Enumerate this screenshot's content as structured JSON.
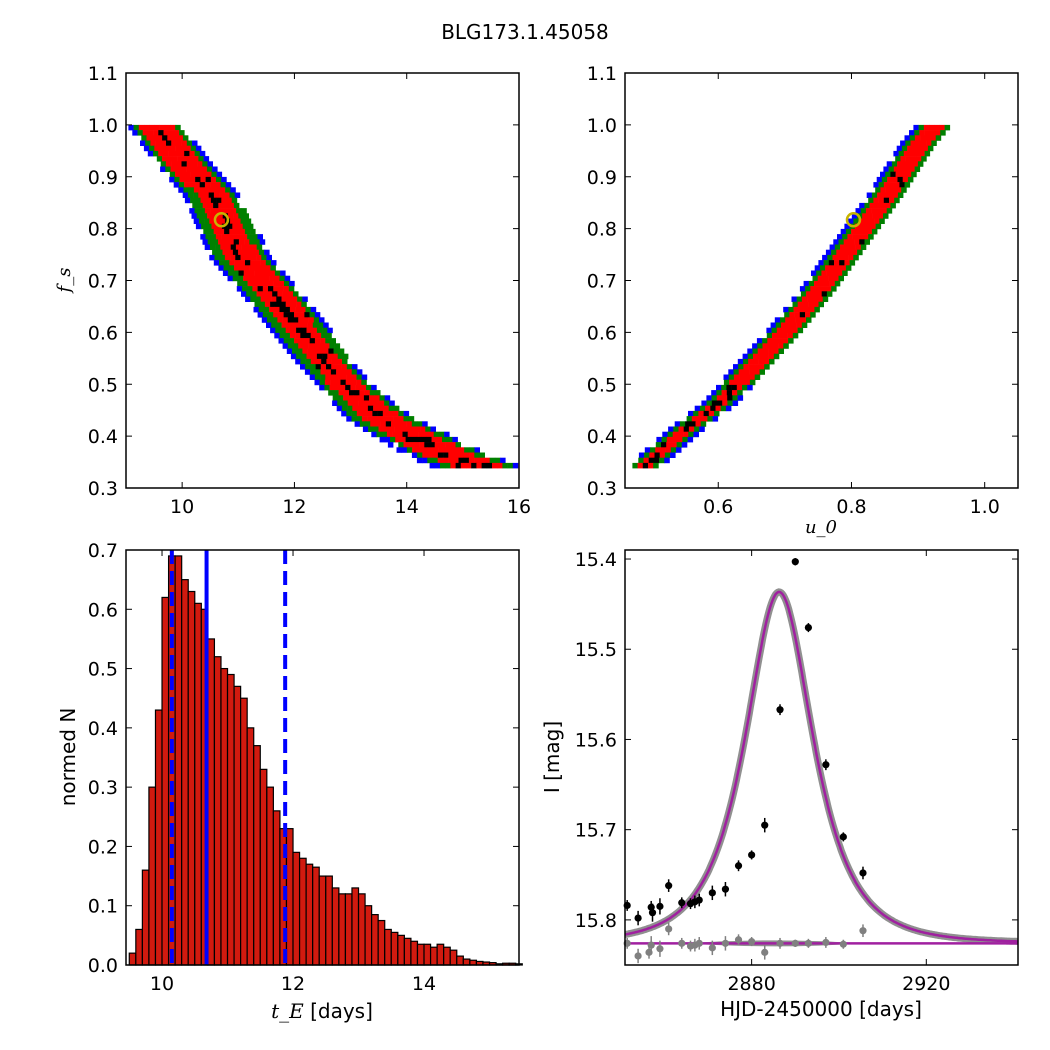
{
  "figure_title": "BLG173.1.45058",
  "colors": {
    "blue": "#0000ff",
    "green": "#008000",
    "red": "#ff0000",
    "black": "#000000",
    "hist_fill": "#d11a0f",
    "model_line": "#a020a0",
    "residual": "#808080",
    "marker_ring": "#c8b400"
  },
  "chart_data": [
    {
      "type": "heatmap",
      "panel": "fs_vs_tE",
      "xlabel": "",
      "ylabel": "f_s",
      "xlim": [
        9,
        16
      ],
      "ylim": [
        0.3,
        1.1
      ],
      "xticks": [
        "10",
        "12",
        "14",
        "16"
      ],
      "yticks": [
        "0.3",
        "0.4",
        "0.5",
        "0.6",
        "0.7",
        "0.8",
        "0.9",
        "1.0",
        "1.1"
      ],
      "levels": [
        "blue",
        "green",
        "red",
        "black"
      ],
      "ridge": [
        [
          9.5,
          1.0
        ],
        [
          10.0,
          0.93
        ],
        [
          10.5,
          0.87
        ],
        [
          11.0,
          0.75
        ],
        [
          11.5,
          0.69
        ],
        [
          12.0,
          0.62
        ],
        [
          12.5,
          0.55
        ],
        [
          13.0,
          0.49
        ],
        [
          13.5,
          0.44
        ],
        [
          14.0,
          0.41
        ],
        [
          14.5,
          0.38
        ],
        [
          15.0,
          0.355
        ],
        [
          15.4,
          0.34
        ]
      ],
      "best_fit": {
        "x": 10.7,
        "y": 0.817
      }
    },
    {
      "type": "heatmap",
      "panel": "fs_vs_u0",
      "xlabel": "u_0",
      "ylabel": "",
      "xlim": [
        0.46,
        1.05
      ],
      "ylim": [
        0.3,
        1.1
      ],
      "xticks": [
        "0.6",
        "0.8",
        "1.0"
      ],
      "yticks": [
        "0.3",
        "0.4",
        "0.5",
        "0.6",
        "0.7",
        "0.8",
        "0.9",
        "1.0",
        "1.1"
      ],
      "levels": [
        "blue",
        "green",
        "red",
        "black"
      ],
      "ridge": [
        [
          0.48,
          0.34
        ],
        [
          0.55,
          0.42
        ],
        [
          0.6,
          0.47
        ],
        [
          0.65,
          0.54
        ],
        [
          0.7,
          0.61
        ],
        [
          0.75,
          0.69
        ],
        [
          0.8,
          0.78
        ],
        [
          0.85,
          0.87
        ],
        [
          0.9,
          0.97
        ],
        [
          0.92,
          1.0
        ]
      ],
      "best_fit": {
        "x": 0.803,
        "y": 0.817
      }
    },
    {
      "type": "bar",
      "panel": "tE_histogram",
      "xlabel": "t_E",
      "xlabel_suffix": " [days]",
      "ylabel": "normed N",
      "xlim": [
        9.45,
        15.45
      ],
      "ylim": [
        0,
        0.7
      ],
      "xticks": [
        "10",
        "12",
        "14"
      ],
      "yticks": [
        "0.0",
        "0.1",
        "0.2",
        "0.3",
        "0.4",
        "0.5",
        "0.6",
        "0.7"
      ],
      "bin_start": 9.5,
      "bin_width": 0.1,
      "values": [
        0.02,
        0.06,
        0.16,
        0.3,
        0.43,
        0.62,
        0.69,
        0.69,
        0.65,
        0.63,
        0.61,
        0.6,
        0.55,
        0.52,
        0.5,
        0.49,
        0.47,
        0.45,
        0.4,
        0.37,
        0.33,
        0.3,
        0.26,
        0.23,
        0.23,
        0.19,
        0.18,
        0.17,
        0.165,
        0.15,
        0.15,
        0.13,
        0.12,
        0.12,
        0.13,
        0.12,
        0.1,
        0.085,
        0.075,
        0.06,
        0.055,
        0.05,
        0.045,
        0.04,
        0.035,
        0.035,
        0.03,
        0.035,
        0.03,
        0.025,
        0.015,
        0.01,
        0.008,
        0.006,
        0.005,
        0.004,
        0.002,
        0.003,
        0.003,
        0.002
      ],
      "vlines": [
        {
          "x": 10.15,
          "style": "dashed"
        },
        {
          "x": 10.68,
          "style": "solid"
        },
        {
          "x": 11.88,
          "style": "dashed"
        }
      ]
    },
    {
      "type": "scatter",
      "panel": "light_curve",
      "xlabel": "HJD-2450000 [days]",
      "ylabel": "I [mag]",
      "xlim": [
        2851,
        2941
      ],
      "ylim": [
        15.85,
        15.39
      ],
      "xticks": [
        "2880",
        "2920"
      ],
      "yticks": [
        "15.4",
        "15.5",
        "15.6",
        "15.7",
        "15.8"
      ],
      "model": {
        "t0": 2886.3,
        "u0": 0.803,
        "tE": 10.7,
        "fs": 0.817,
        "baseline": 15.826
      },
      "series": [
        {
          "role": "data",
          "points": [
            [
              2851.5,
              15.784
            ],
            [
              2854,
              15.798
            ],
            [
              2857,
              15.786
            ],
            [
              2857.3,
              15.792
            ],
            [
              2859,
              15.785
            ],
            [
              2861,
              15.762
            ],
            [
              2864,
              15.781
            ],
            [
              2866,
              15.782
            ],
            [
              2867,
              15.78
            ],
            [
              2868,
              15.778
            ],
            [
              2871,
              15.77
            ],
            [
              2874,
              15.766
            ],
            [
              2877,
              15.74
            ],
            [
              2880,
              15.728
            ],
            [
              2883,
              15.695
            ],
            [
              2886.5,
              15.567
            ],
            [
              2890,
              15.403
            ],
            [
              2893,
              15.476
            ],
            [
              2897,
              15.628
            ],
            [
              2901,
              15.708
            ],
            [
              2905.5,
              15.748
            ]
          ],
          "errors": [
            0.006,
            0.008,
            0.007,
            0.01,
            0.009,
            0.007,
            0.006,
            0.006,
            0.007,
            0.007,
            0.008,
            0.008,
            0.006,
            0.005,
            0.008,
            0.006,
            0.004,
            0.005,
            0.006,
            0.005,
            0.007
          ]
        },
        {
          "role": "residuals",
          "points": [
            [
              2851.5,
              15.826
            ],
            [
              2854,
              15.84
            ],
            [
              2856.5,
              15.836
            ],
            [
              2857,
              15.828
            ],
            [
              2859,
              15.832
            ],
            [
              2861,
              15.81
            ],
            [
              2864,
              15.826
            ],
            [
              2866,
              15.829
            ],
            [
              2867,
              15.828
            ],
            [
              2868,
              15.826
            ],
            [
              2871,
              15.831
            ],
            [
              2874,
              15.826
            ],
            [
              2877,
              15.822
            ],
            [
              2880,
              15.824
            ],
            [
              2883,
              15.836
            ],
            [
              2886.5,
              15.826
            ],
            [
              2890,
              15.826
            ],
            [
              2893,
              15.826
            ],
            [
              2897,
              15.825
            ],
            [
              2901,
              15.827
            ],
            [
              2905.5,
              15.812
            ]
          ],
          "errors": [
            0.006,
            0.008,
            0.007,
            0.01,
            0.009,
            0.007,
            0.006,
            0.006,
            0.007,
            0.007,
            0.008,
            0.008,
            0.006,
            0.005,
            0.008,
            0.006,
            0.004,
            0.005,
            0.006,
            0.005,
            0.007
          ]
        }
      ]
    }
  ]
}
